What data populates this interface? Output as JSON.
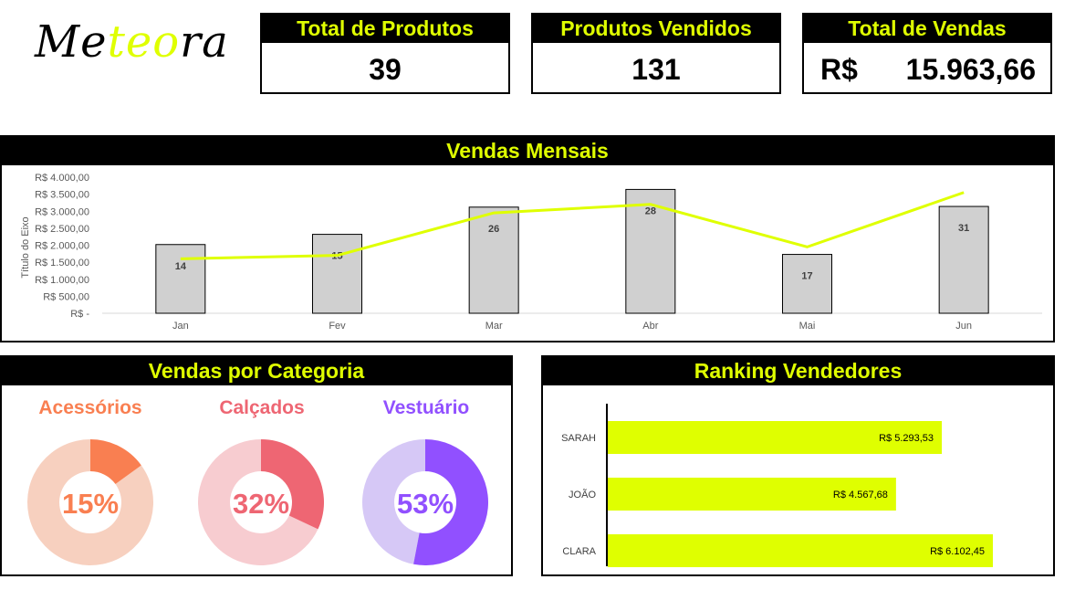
{
  "logo": {
    "part1": "Me",
    "part2": "teo",
    "part3": "ra"
  },
  "kpis": {
    "total_produtos": {
      "label": "Total de Produtos",
      "value": "39"
    },
    "produtos_vendidos": {
      "label": "Produtos Vendidos",
      "value": "131"
    },
    "total_vendas": {
      "label": "Total de Vendas",
      "currency": "R$",
      "value": "15.963,66"
    }
  },
  "monthly": {
    "title": "Vendas Mensais",
    "ylabel": "Título do Eixo",
    "yticks": [
      "R$ 4.000,00",
      "R$ 3.500,00",
      "R$ 3.000,00",
      "R$ 2.500,00",
      "R$ 2.000,00",
      "R$ 1.500,00",
      "R$ 1.000,00",
      "R$ 500,00",
      "R$ -"
    ]
  },
  "categories_panel": {
    "title": "Vendas por Categoria",
    "items": [
      {
        "name": "Acessórios",
        "pct_label": "15%",
        "color": "#f97f51",
        "light": "#f7d0bf"
      },
      {
        "name": "Calçados",
        "pct_label": "32%",
        "color": "#ee6673",
        "light": "#f7ccd0"
      },
      {
        "name": "Vestuário",
        "pct_label": "53%",
        "color": "#9150ff",
        "light": "#d6c8f6"
      }
    ]
  },
  "ranking_panel": {
    "title": "Ranking Vendedores",
    "items": [
      {
        "name": "SARAH",
        "value_label": "R$ 5.293,53"
      },
      {
        "name": "JOÃO",
        "value_label": "R$ 4.567,68"
      },
      {
        "name": "CLARA",
        "value_label": "R$ 6.102,45"
      }
    ]
  },
  "chart_data": [
    {
      "type": "bar",
      "title": "Vendas Mensais",
      "ylabel": "Título do Eixo",
      "categories": [
        "Jan",
        "Fev",
        "Mar",
        "Abr",
        "Mai",
        "Jun"
      ],
      "ylim": [
        0,
        4000
      ],
      "series": [
        {
          "type": "bar",
          "values": [
            2020,
            2320,
            3120,
            3640,
            1730,
            3140
          ],
          "data_labels": [
            "14",
            "15",
            "26",
            "28",
            "17",
            "31"
          ]
        },
        {
          "type": "line",
          "values": [
            1600,
            1700,
            2950,
            3200,
            1950,
            3550
          ]
        }
      ],
      "colors": {
        "bar": "#d0d0d0",
        "line": "#dfff00"
      },
      "grid": false
    },
    {
      "type": "pie",
      "title": "Vendas por Categoria",
      "categories": [
        "Acessórios",
        "Calçados",
        "Vestuário"
      ],
      "values": [
        15,
        32,
        53
      ]
    },
    {
      "type": "bar",
      "title": "Ranking Vendedores",
      "orientation": "horizontal",
      "categories": [
        "SARAH",
        "JOÃO",
        "CLARA"
      ],
      "values": [
        5293.53,
        4567.68,
        6102.45
      ],
      "data_labels": [
        "R$ 5.293,53",
        "R$ 4.567,68",
        "R$ 6.102,45"
      ],
      "colors": {
        "bar": "#dfff00"
      }
    }
  ]
}
